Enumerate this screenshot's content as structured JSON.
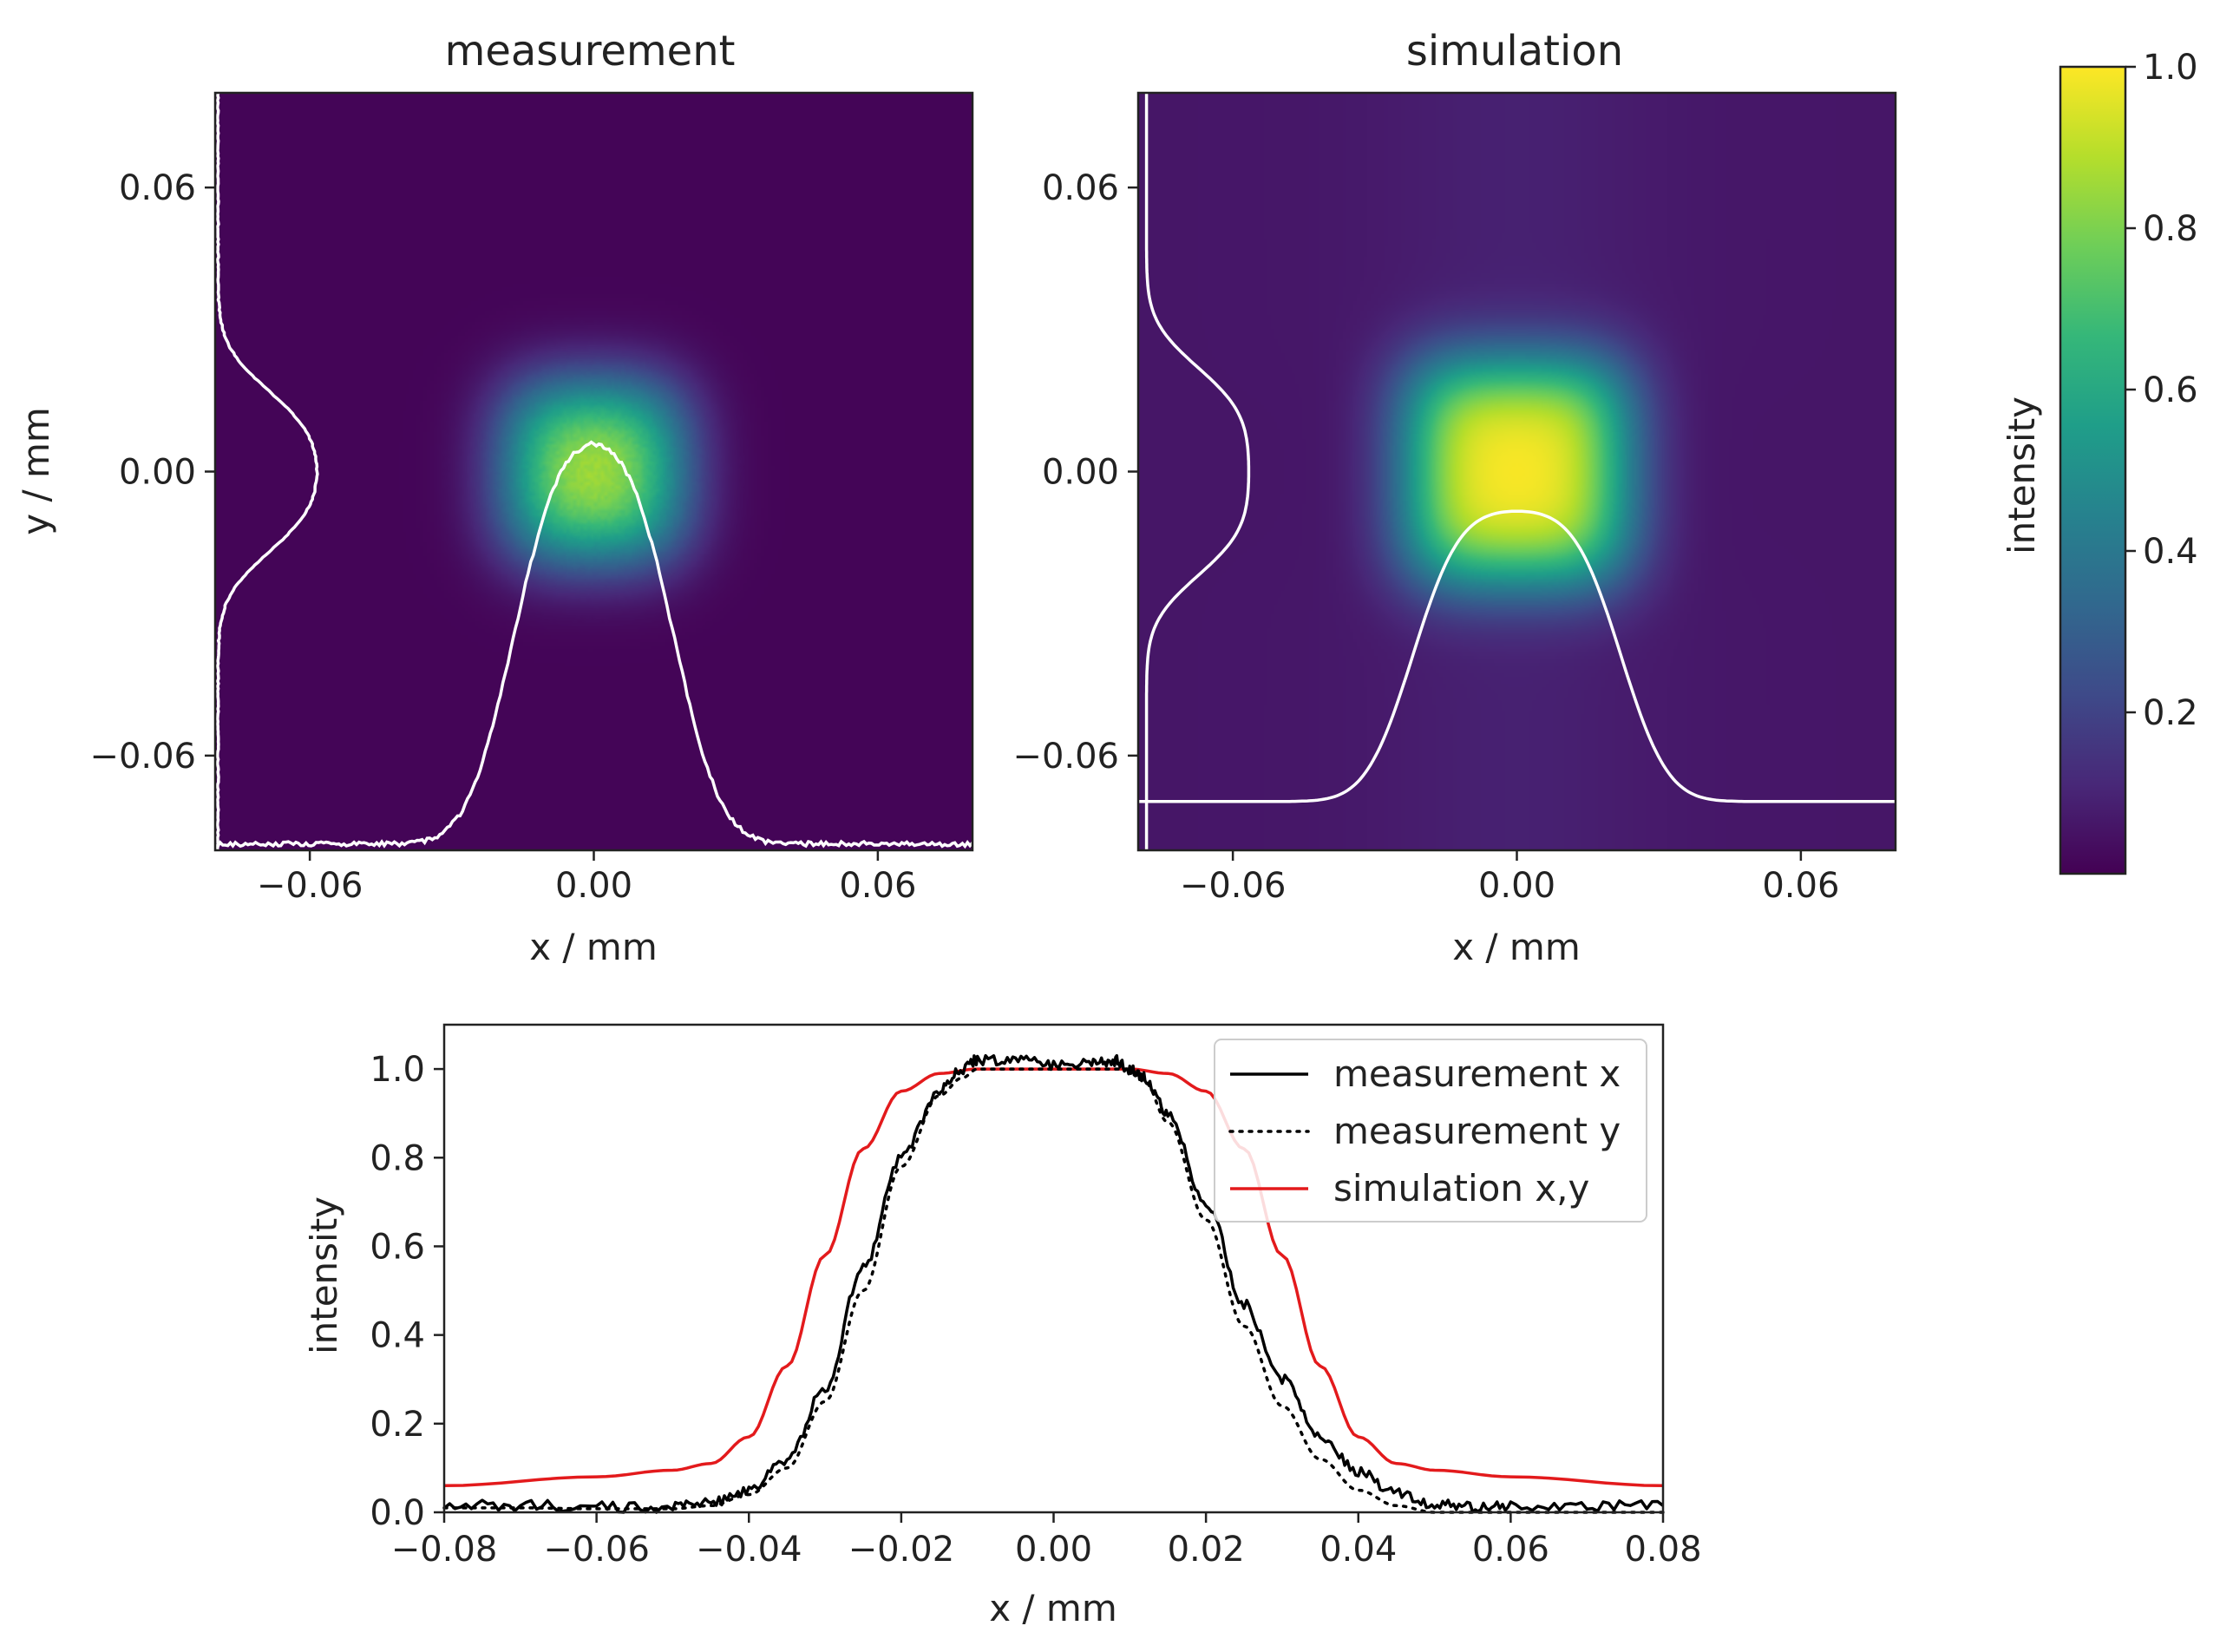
{
  "colors": {
    "background": "#ffffff",
    "axis": "#222222",
    "overlay_line": "#ffffff",
    "measurement_line": "#000000",
    "simulation_line": "#e31a1c",
    "viridis": [
      "#440154",
      "#482878",
      "#3e4a89",
      "#31688e",
      "#26828e",
      "#1f9e89",
      "#35b779",
      "#6ece58",
      "#b5de2b",
      "#fde725"
    ]
  },
  "chart_data": [
    {
      "type": "heatmap",
      "title": "measurement",
      "xlabel": "x / mm",
      "ylabel": "y / mm",
      "xlim": [
        -0.08,
        0.08
      ],
      "ylim": [
        -0.08,
        0.08
      ],
      "xticks": [
        -0.06,
        0.0,
        0.06
      ],
      "xtick_labels": [
        "−0.06",
        "0.00",
        "0.06"
      ],
      "yticks": [
        0.06,
        0.0,
        -0.06
      ],
      "ytick_labels": [
        "0.06",
        "0.00",
        "−0.06"
      ],
      "colormap": "viridis",
      "description_values": {
        "plateau_intensity": 0.9,
        "plateau_halfwidth_mm": 0.017,
        "edge_width_mm": 0.011,
        "background": 0.01
      },
      "overlays": [
        "x profile (white, bottom)",
        "y profile (white, left)"
      ]
    },
    {
      "type": "heatmap",
      "title": "simulation",
      "xlabel": "x / mm",
      "ylabel": "",
      "xlim": [
        -0.08,
        0.08
      ],
      "ylim": [
        -0.08,
        0.08
      ],
      "xticks": [
        -0.06,
        0.0,
        0.06
      ],
      "xtick_labels": [
        "−0.06",
        "0.00",
        "0.06"
      ],
      "yticks": [
        0.06,
        0.0,
        -0.06
      ],
      "ytick_labels": [
        "0.06",
        "0.00",
        "−0.06"
      ],
      "colormap": "viridis",
      "description_values": {
        "plateau_intensity": 1.0,
        "plateau_halfwidth_mm": 0.022,
        "edge_width_mm": 0.011,
        "background": 0.06
      },
      "overlays": [
        "x profile (white, bottom)",
        "y profile (white, left)"
      ]
    },
    {
      "type": "colorbar",
      "label": "intensity",
      "range": [
        0.0,
        1.0
      ],
      "ticks": [
        0.2,
        0.4,
        0.6,
        0.8,
        1.0
      ],
      "tick_labels": [
        "0.2",
        "0.4",
        "0.6",
        "0.8",
        "1.0"
      ]
    },
    {
      "type": "line",
      "title": "",
      "xlabel": "x / mm",
      "ylabel": "intensity",
      "xlim": [
        -0.08,
        0.08
      ],
      "ylim": [
        0.0,
        1.1
      ],
      "xticks": [
        -0.08,
        -0.06,
        -0.04,
        -0.02,
        0.0,
        0.02,
        0.04,
        0.06,
        0.08
      ],
      "xtick_labels": [
        "−0.08",
        "−0.06",
        "−0.04",
        "−0.02",
        "0.00",
        "0.02",
        "0.04",
        "0.06",
        "0.08"
      ],
      "yticks": [
        0.0,
        0.2,
        0.4,
        0.6,
        0.8,
        1.0
      ],
      "ytick_labels": [
        "0.0",
        "0.2",
        "0.4",
        "0.6",
        "0.8",
        "1.0"
      ],
      "legend_position": "top-right",
      "series": [
        {
          "name": "measurement x",
          "style": "solid",
          "color": "#000000",
          "x": [
            -0.08,
            -0.07,
            -0.06,
            -0.05,
            -0.045,
            -0.04,
            -0.035,
            -0.03,
            -0.025,
            -0.02,
            -0.015,
            -0.012,
            -0.01,
            -0.005,
            0.0,
            0.005,
            0.008,
            0.01,
            0.012,
            0.015,
            0.02,
            0.025,
            0.03,
            0.035,
            0.04,
            0.045,
            0.05,
            0.055,
            0.06,
            0.07,
            0.08
          ],
          "y": [
            0.015,
            0.015,
            0.012,
            0.012,
            0.02,
            0.05,
            0.12,
            0.28,
            0.55,
            0.8,
            0.95,
            1.0,
            1.02,
            1.02,
            1.01,
            1.01,
            1.02,
            1.0,
            0.98,
            0.9,
            0.7,
            0.47,
            0.3,
            0.17,
            0.09,
            0.045,
            0.02,
            0.012,
            0.012,
            0.015,
            0.015
          ]
        },
        {
          "name": "measurement y",
          "style": "dotted",
          "color": "#000000",
          "x": [
            -0.08,
            -0.07,
            -0.06,
            -0.05,
            -0.045,
            -0.04,
            -0.035,
            -0.03,
            -0.025,
            -0.02,
            -0.015,
            -0.012,
            -0.01,
            -0.005,
            0.0,
            0.005,
            0.01,
            0.012,
            0.015,
            0.02,
            0.025,
            0.03,
            0.035,
            0.04,
            0.045,
            0.05,
            0.055,
            0.06,
            0.07,
            0.08
          ],
          "y": [
            0.01,
            0.01,
            0.008,
            0.008,
            0.015,
            0.04,
            0.1,
            0.25,
            0.5,
            0.78,
            0.94,
            0.98,
            1.0,
            1.0,
            1.0,
            1.0,
            1.0,
            0.97,
            0.88,
            0.66,
            0.42,
            0.24,
            0.12,
            0.05,
            0.015,
            0.0,
            0.0,
            0.0,
            0.0,
            0.0
          ]
        },
        {
          "name": "simulation x,y",
          "style": "solid",
          "color": "#e31a1c",
          "x": [
            -0.08,
            -0.06,
            -0.05,
            -0.045,
            -0.04,
            -0.035,
            -0.03,
            -0.025,
            -0.02,
            -0.015,
            -0.01,
            0.0,
            0.01,
            0.015,
            0.02,
            0.025,
            0.03,
            0.035,
            0.04,
            0.045,
            0.05,
            0.06,
            0.08
          ],
          "y": [
            0.06,
            0.08,
            0.095,
            0.11,
            0.17,
            0.33,
            0.58,
            0.82,
            0.95,
            0.99,
            1.0,
            1.0,
            1.0,
            0.99,
            0.95,
            0.82,
            0.58,
            0.33,
            0.17,
            0.11,
            0.095,
            0.08,
            0.06
          ]
        }
      ]
    }
  ]
}
